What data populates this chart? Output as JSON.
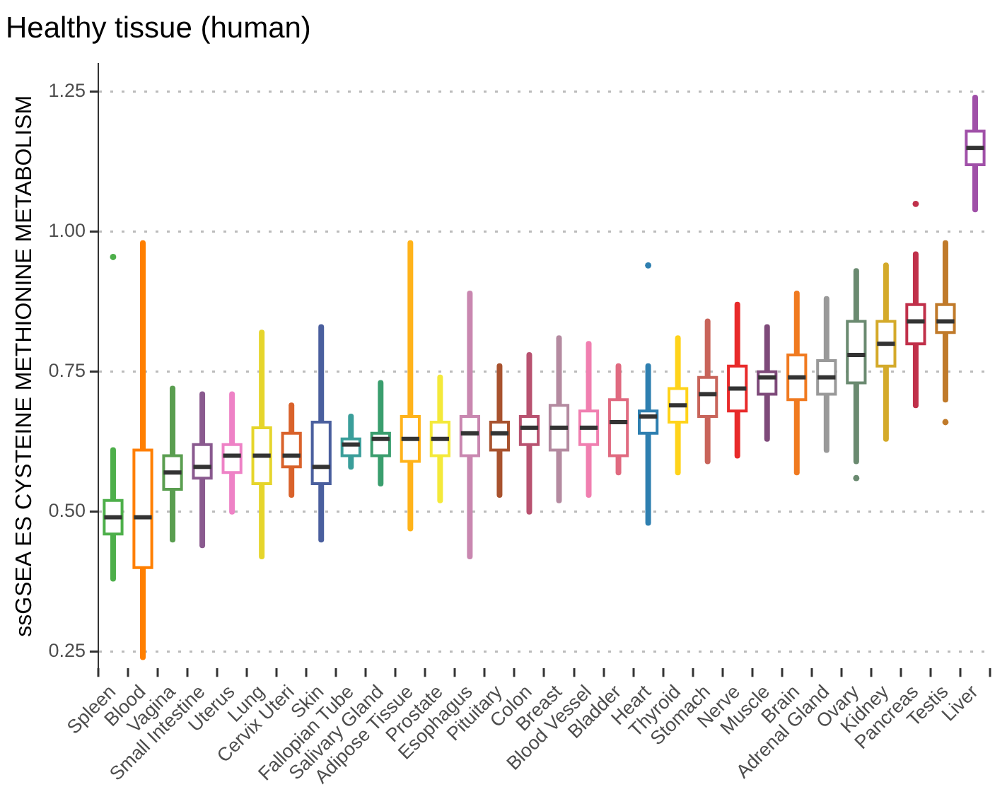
{
  "chart_data": {
    "type": "box",
    "title": "Healthy tissue (human)",
    "ylabel": "ssGSEA ES CYSTEINE METHIONINE METABOLISM",
    "categories": [
      "Spleen",
      "Blood",
      "Vagina",
      "Small Intestine",
      "Uterus",
      "Lung",
      "Cervix Uteri",
      "Skin",
      "Fallopian Tube",
      "Salivary Gland",
      "Adipose Tissue",
      "Prostate",
      "Esophagus",
      "Pituitary",
      "Colon",
      "Breast",
      "Blood Vessel",
      "Bladder",
      "Heart",
      "Thyroid",
      "Stomach",
      "Nerve",
      "Muscle",
      "Brain",
      "Adrenal Gland",
      "Ovary",
      "Kidney",
      "Pancreas",
      "Testis",
      "Liver"
    ],
    "colors": [
      "#4daf4a",
      "#ff7f00",
      "#5a9e50",
      "#8a5a8f",
      "#ee82c6",
      "#e6d52b",
      "#d9622b",
      "#4a5f9e",
      "#3a9e9a",
      "#3a9e6e",
      "#ffb31a",
      "#f4e93a",
      "#c987b0",
      "#a8522e",
      "#b85270",
      "#b48aa0",
      "#f07fb0",
      "#e06a80",
      "#2e7fb0",
      "#ffd31a",
      "#c8645a",
      "#e82a2a",
      "#7e4a7a",
      "#f07a20",
      "#999999",
      "#6a8a70",
      "#d4aa2a",
      "#c0304a",
      "#c07a2a",
      "#a050a8"
    ],
    "boxes": [
      {
        "low": 0.38,
        "q1": 0.46,
        "median": 0.49,
        "q3": 0.52,
        "high": 0.61,
        "outliers": [
          0.955
        ]
      },
      {
        "low": 0.24,
        "q1": 0.4,
        "median": 0.49,
        "q3": 0.61,
        "high": 0.98
      },
      {
        "low": 0.45,
        "q1": 0.54,
        "median": 0.57,
        "q3": 0.6,
        "high": 0.72
      },
      {
        "low": 0.44,
        "q1": 0.56,
        "median": 0.58,
        "q3": 0.62,
        "high": 0.71
      },
      {
        "low": 0.5,
        "q1": 0.57,
        "median": 0.6,
        "q3": 0.62,
        "high": 0.71
      },
      {
        "low": 0.42,
        "q1": 0.55,
        "median": 0.6,
        "q3": 0.65,
        "high": 0.82
      },
      {
        "low": 0.53,
        "q1": 0.58,
        "median": 0.6,
        "q3": 0.64,
        "high": 0.69
      },
      {
        "low": 0.45,
        "q1": 0.55,
        "median": 0.58,
        "q3": 0.66,
        "high": 0.83
      },
      {
        "low": 0.58,
        "q1": 0.6,
        "median": 0.62,
        "q3": 0.63,
        "high": 0.67
      },
      {
        "low": 0.55,
        "q1": 0.6,
        "median": 0.63,
        "q3": 0.64,
        "high": 0.73
      },
      {
        "low": 0.47,
        "q1": 0.59,
        "median": 0.63,
        "q3": 0.67,
        "high": 0.98
      },
      {
        "low": 0.52,
        "q1": 0.6,
        "median": 0.63,
        "q3": 0.66,
        "high": 0.74
      },
      {
        "low": 0.42,
        "q1": 0.6,
        "median": 0.64,
        "q3": 0.67,
        "high": 0.89
      },
      {
        "low": 0.53,
        "q1": 0.61,
        "median": 0.64,
        "q3": 0.66,
        "high": 0.76
      },
      {
        "low": 0.5,
        "q1": 0.62,
        "median": 0.65,
        "q3": 0.67,
        "high": 0.78
      },
      {
        "low": 0.52,
        "q1": 0.61,
        "median": 0.65,
        "q3": 0.69,
        "high": 0.81
      },
      {
        "low": 0.53,
        "q1": 0.62,
        "median": 0.65,
        "q3": 0.68,
        "high": 0.8
      },
      {
        "low": 0.57,
        "q1": 0.6,
        "median": 0.66,
        "q3": 0.7,
        "high": 0.76
      },
      {
        "low": 0.48,
        "q1": 0.64,
        "median": 0.67,
        "q3": 0.68,
        "high": 0.76,
        "outliers": [
          0.94
        ]
      },
      {
        "low": 0.57,
        "q1": 0.66,
        "median": 0.69,
        "q3": 0.72,
        "high": 0.81
      },
      {
        "low": 0.59,
        "q1": 0.67,
        "median": 0.71,
        "q3": 0.74,
        "high": 0.84
      },
      {
        "low": 0.6,
        "q1": 0.68,
        "median": 0.72,
        "q3": 0.76,
        "high": 0.87
      },
      {
        "low": 0.63,
        "q1": 0.71,
        "median": 0.74,
        "q3": 0.75,
        "high": 0.83
      },
      {
        "low": 0.57,
        "q1": 0.7,
        "median": 0.74,
        "q3": 0.78,
        "high": 0.89
      },
      {
        "low": 0.61,
        "q1": 0.71,
        "median": 0.74,
        "q3": 0.77,
        "high": 0.88
      },
      {
        "low": 0.59,
        "q1": 0.73,
        "median": 0.78,
        "q3": 0.84,
        "high": 0.93,
        "outliers": [
          0.56
        ]
      },
      {
        "low": 0.63,
        "q1": 0.76,
        "median": 0.8,
        "q3": 0.84,
        "high": 0.94
      },
      {
        "low": 0.69,
        "q1": 0.8,
        "median": 0.84,
        "q3": 0.87,
        "high": 0.96,
        "outliers": [
          1.05
        ]
      },
      {
        "low": 0.7,
        "q1": 0.82,
        "median": 0.84,
        "q3": 0.87,
        "high": 0.98,
        "outliers": [
          0.66
        ]
      },
      {
        "low": 1.04,
        "q1": 1.12,
        "median": 1.15,
        "q3": 1.18,
        "high": 1.24
      }
    ],
    "ylim": [
      0.22,
      1.3
    ],
    "yticks": [
      0.25,
      {
        "value": 0.5,
        "label": "0.50"
      },
      0.75,
      {
        "value": 1,
        "label": "1.00"
      },
      1.25
    ],
    "grid": "y"
  }
}
